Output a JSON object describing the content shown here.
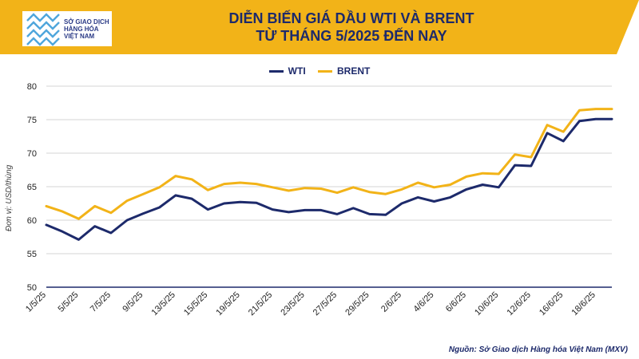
{
  "header": {
    "logo_lines": [
      "SỞ GIAO DỊCH",
      "HÀNG HÓA",
      "VIỆT NAM"
    ],
    "title_line1": "DIỄN BIẾN GIÁ DẦU WTI VÀ BRENT",
    "title_line2": "TỪ THÁNG 5/2025 ĐẾN NAY",
    "accent_color": "#f2b318",
    "dark_color": "#1d2a6b"
  },
  "source": "Nguồn: Sở Giao dịch Hàng hóa Việt Nam (MXV)",
  "chart_data": {
    "type": "line",
    "ylabel": "Đơn vị: USD/thùng",
    "ylim": [
      50,
      80
    ],
    "yticks": [
      50,
      55,
      60,
      65,
      70,
      75,
      80
    ],
    "x": [
      "1/5/25",
      "2/5/25",
      "5/5/25",
      "6/5/25",
      "7/5/25",
      "8/5/25",
      "9/5/25",
      "12/5/25",
      "13/5/25",
      "14/5/25",
      "15/5/25",
      "16/5/25",
      "19/5/25",
      "20/5/25",
      "21/5/25",
      "22/5/25",
      "23/5/25",
      "26/5/25",
      "27/5/25",
      "28/5/25",
      "29/5/25",
      "30/5/25",
      "2/6/25",
      "3/6/25",
      "4/6/25",
      "5/6/25",
      "6/6/25",
      "9/6/25",
      "10/6/25",
      "11/6/25",
      "12/6/25",
      "13/6/25",
      "16/6/25",
      "17/6/25",
      "18/6/25",
      "19/6/25"
    ],
    "xtick_labels": [
      "1/5/25",
      "5/5/25",
      "7/5/25",
      "9/5/25",
      "13/5/25",
      "15/5/25",
      "19/5/25",
      "21/5/25",
      "23/5/25",
      "27/5/25",
      "29/5/25",
      "2/6/25",
      "4/6/25",
      "6/6/25",
      "10/6/25",
      "12/6/25",
      "16/6/25",
      "18/6/25"
    ],
    "series": [
      {
        "name": "WTI",
        "color": "#1d2a6b",
        "values": [
          59.3,
          58.3,
          57.1,
          59.1,
          58.1,
          60.0,
          61.0,
          61.9,
          63.7,
          63.2,
          61.6,
          62.5,
          62.7,
          62.6,
          61.6,
          61.2,
          61.5,
          61.5,
          60.9,
          61.8,
          60.9,
          60.8,
          62.5,
          63.4,
          62.8,
          63.4,
          64.6,
          65.3,
          64.9,
          68.2,
          68.1,
          73.0,
          71.8,
          74.8,
          75.1,
          75.1
        ]
      },
      {
        "name": "BRENT",
        "color": "#f2b318",
        "values": [
          62.1,
          61.3,
          60.2,
          62.1,
          61.1,
          62.9,
          63.9,
          64.9,
          66.6,
          66.1,
          64.5,
          65.4,
          65.6,
          65.4,
          64.9,
          64.4,
          64.8,
          64.7,
          64.1,
          64.9,
          64.2,
          63.9,
          64.6,
          65.6,
          64.9,
          65.3,
          66.5,
          67.0,
          66.9,
          69.8,
          69.4,
          74.2,
          73.2,
          76.4,
          76.6,
          76.6
        ]
      }
    ]
  }
}
